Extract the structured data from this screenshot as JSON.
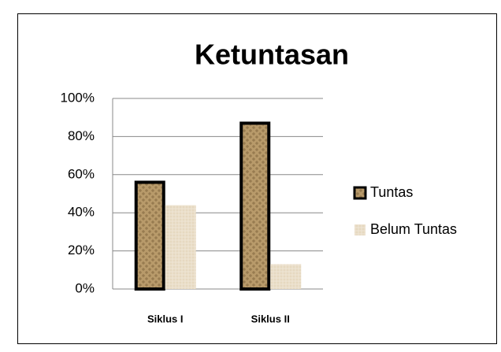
{
  "chart_data": {
    "type": "bar",
    "title": "Ketuntasan",
    "categories": [
      "Siklus I",
      "Siklus II"
    ],
    "series": [
      {
        "name": "Tuntas",
        "color": "#b89a6a",
        "values": [
          56,
          87
        ]
      },
      {
        "name": "Belum Tuntas",
        "color": "#e6d8c0",
        "values": [
          44,
          13
        ]
      }
    ],
    "ylim": [
      0,
      100
    ],
    "yticks": [
      {
        "value": 0,
        "label": "0%"
      },
      {
        "value": 20,
        "label": "20%"
      },
      {
        "value": 40,
        "label": "40%"
      },
      {
        "value": 60,
        "label": "60%"
      },
      {
        "value": 80,
        "label": "80%"
      },
      {
        "value": 100,
        "label": "100%"
      }
    ],
    "grid": true,
    "legend": "right"
  }
}
